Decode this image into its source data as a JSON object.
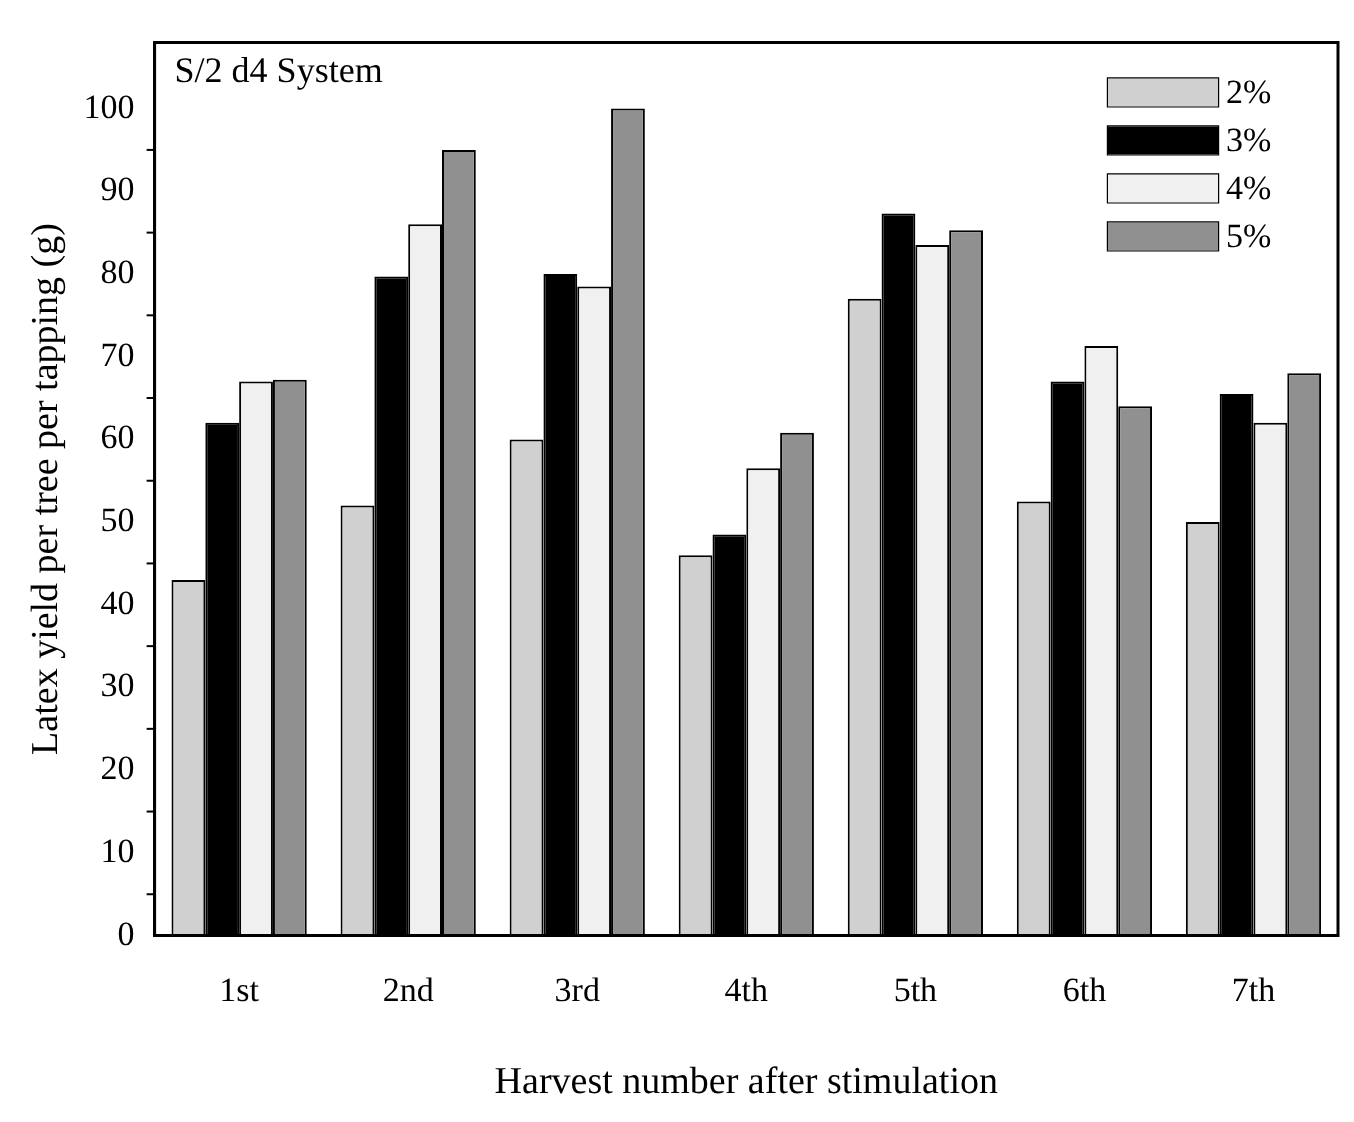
{
  "chart_data": {
    "type": "bar",
    "title": "S/2 d4 System",
    "xlabel": "Harvest number after stimulation",
    "ylabel": "Latex yield per tree per tapping (g)",
    "categories": [
      "1st",
      "2nd",
      "3rd",
      "4th",
      "5th",
      "6th",
      "7th"
    ],
    "series": [
      {
        "name": "2%",
        "color": "#d0d0d0",
        "values": [
          43,
          52,
          60,
          46,
          77,
          52.5,
          50
        ]
      },
      {
        "name": "3%",
        "color": "#000000",
        "values": [
          62,
          79.7,
          80,
          48.5,
          87.3,
          67,
          65.5
        ]
      },
      {
        "name": "4%",
        "color": "#f0f0f0",
        "values": [
          67,
          86,
          78.5,
          56.5,
          83.5,
          71.3,
          62
        ]
      },
      {
        "name": "5%",
        "color": "#909090",
        "values": [
          67.2,
          95,
          100,
          60.8,
          85.3,
          64,
          68
        ]
      }
    ],
    "ylim": [
      0,
      108
    ],
    "yticks": [
      0,
      10,
      20,
      30,
      40,
      50,
      60,
      70,
      80,
      90,
      100
    ],
    "grid": false,
    "legend": "top right"
  }
}
